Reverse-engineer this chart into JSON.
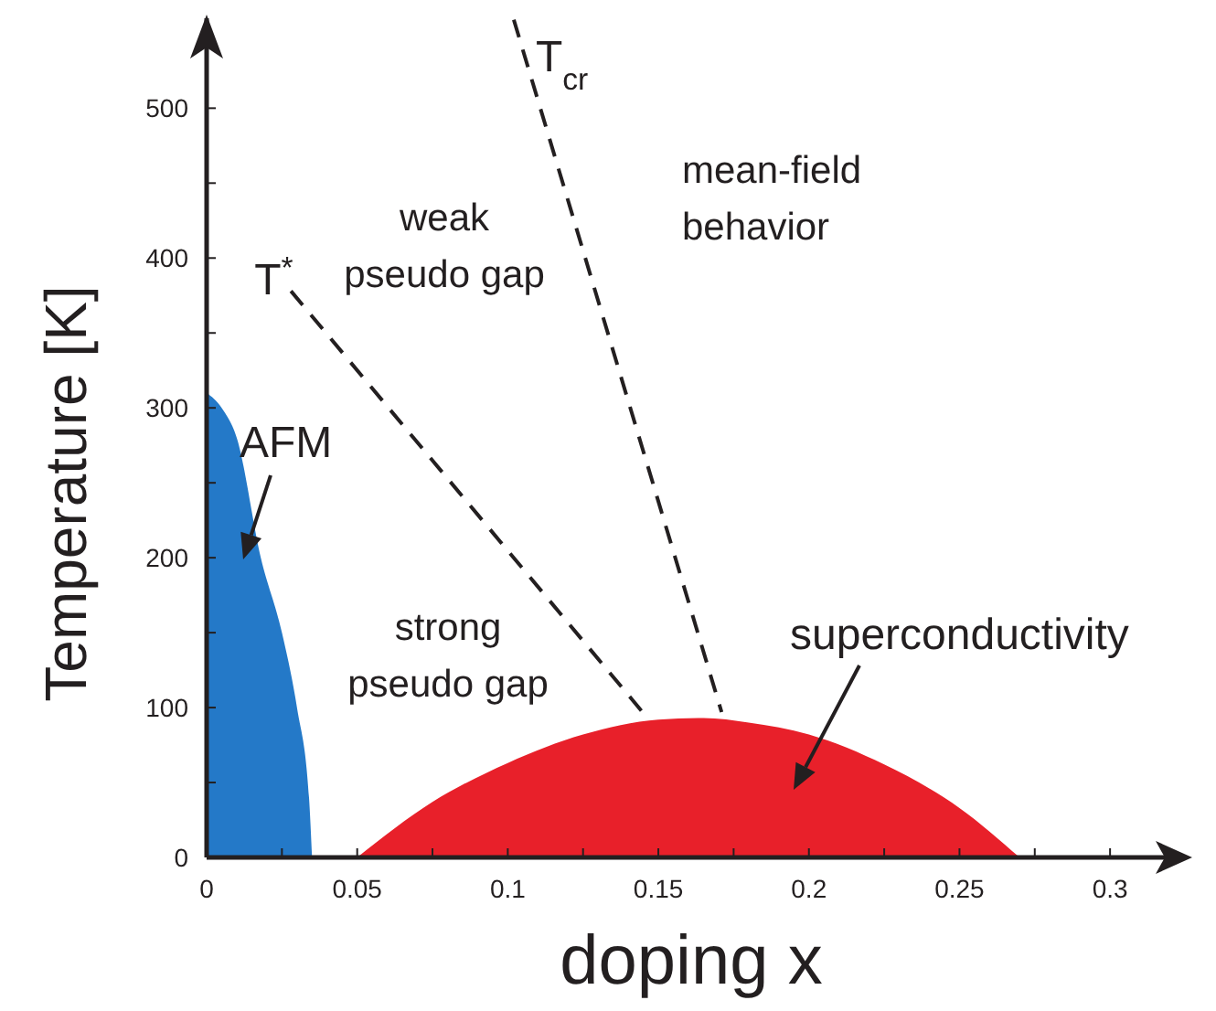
{
  "chart_data": {
    "type": "area",
    "xlabel": "doping x",
    "ylabel": "Temperature [K]",
    "xlim": [
      0,
      0.32
    ],
    "ylim": [
      0,
      560
    ],
    "xticks": [
      0,
      {
        "value": 0.025,
        "label": null
      },
      0.05,
      {
        "value": 0.075,
        "label": null
      },
      0.1,
      {
        "value": 0.125,
        "label": null
      },
      0.15,
      {
        "value": 0.175,
        "label": null
      },
      0.2,
      {
        "value": 0.225,
        "label": null
      },
      0.25,
      {
        "value": 0.275,
        "label": null
      },
      0.3
    ],
    "yticks": [
      0,
      {
        "value": 50,
        "label": null
      },
      100,
      {
        "value": 150,
        "label": null
      },
      200,
      {
        "value": 250,
        "label": null
      },
      300,
      {
        "value": 350,
        "label": null
      },
      400,
      {
        "value": 450,
        "label": null
      },
      500
    ],
    "series": [
      {
        "name": "AFM",
        "color": "#2479c8",
        "x": [
          0,
          0.005,
          0.01,
          0.018,
          0.025,
          0.03,
          0.034,
          0.035
        ],
        "values": [
          310,
          300,
          280,
          200,
          150,
          100,
          40,
          0
        ]
      },
      {
        "name": "superconductivity",
        "color": "#e8202a",
        "x": [
          0.05,
          0.075,
          0.1,
          0.125,
          0.15,
          0.165,
          0.18,
          0.2,
          0.225,
          0.25,
          0.27
        ],
        "values": [
          0,
          37,
          63,
          82,
          92,
          93,
          90,
          82,
          62,
          33,
          0
        ]
      },
      {
        "type": "line",
        "name": "T$^{*}$",
        "color": "#231f20",
        "line_style": "dashed",
        "x": [
          0.028,
          0.146
        ],
        "values": [
          378,
          94
        ]
      },
      {
        "type": "line",
        "name": "T$_{cr}$",
        "color": "#231f20",
        "line_style": "dashed",
        "x": [
          0.102,
          0.171
        ],
        "values": [
          559,
          97
        ]
      }
    ],
    "annotations": [
      "weak\npseudo gap",
      "strong\npseudo gap",
      "mean-field\nbehavior"
    ]
  }
}
